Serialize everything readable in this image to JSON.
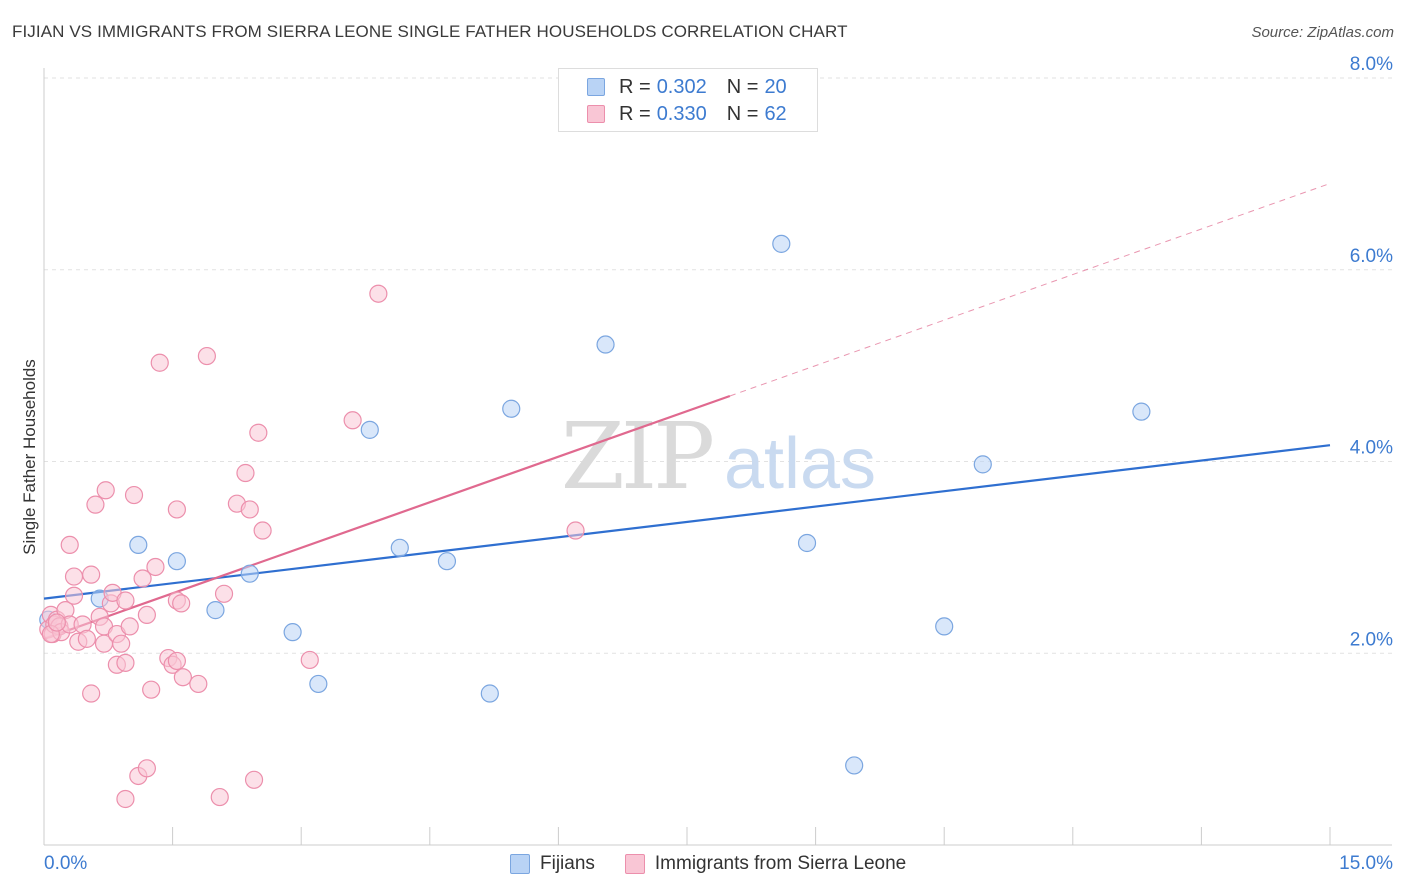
{
  "title": "FIJIAN VS IMMIGRANTS FROM SIERRA LEONE SINGLE FATHER HOUSEHOLDS CORRELATION CHART",
  "source": "Source: ZipAtlas.com",
  "watermark": {
    "zip": "ZIP",
    "atlas": "atlas"
  },
  "legend": {
    "rows": [
      {
        "r_label": "R =",
        "r_value": "0.302",
        "n_label": "N =",
        "n_value": "20",
        "color": "#b9d3f5",
        "border": "#7ba6e0"
      },
      {
        "r_label": "R =",
        "r_value": "0.330",
        "n_label": "N =",
        "n_value": "62",
        "color": "#f9c6d5",
        "border": "#ec8fac"
      }
    ]
  },
  "bottom_legend": [
    {
      "label": "Fijians",
      "color": "#b9d3f5",
      "border": "#7ba6e0"
    },
    {
      "label": "Immigrants from Sierra Leone",
      "color": "#f9c6d5",
      "border": "#ec8fac"
    }
  ],
  "chart_data": {
    "type": "scatter",
    "title": "FIJIAN VS IMMIGRANTS FROM SIERRA LEONE SINGLE FATHER HOUSEHOLDS CORRELATION CHART",
    "xlabel": "",
    "ylabel": "Single Father Households",
    "xlim": [
      0,
      15
    ],
    "ylim": [
      0,
      8.0
    ],
    "x_tick_labels": [
      "0.0%",
      "15.0%"
    ],
    "y_ticks": [
      2.0,
      4.0,
      6.0,
      8.0
    ],
    "y_tick_labels": [
      "2.0%",
      "4.0%",
      "6.0%",
      "8.0%"
    ],
    "grid": true,
    "legend_position": "top-center",
    "series": [
      {
        "name": "Fijians",
        "color": "#7ba6e0",
        "fill": "#b9d3f5",
        "line_color": "#2f6fd0",
        "trend": {
          "x0": 0.0,
          "y0": 2.57,
          "x1": 15.0,
          "y1": 4.17,
          "solid_to": 15.0
        },
        "points": [
          [
            0.05,
            2.35
          ],
          [
            0.65,
            2.57
          ],
          [
            1.1,
            3.13
          ],
          [
            1.55,
            2.96
          ],
          [
            2.0,
            2.45
          ],
          [
            2.4,
            2.83
          ],
          [
            2.9,
            2.22
          ],
          [
            3.2,
            1.68
          ],
          [
            3.8,
            4.33
          ],
          [
            4.15,
            3.1
          ],
          [
            4.7,
            2.96
          ],
          [
            5.2,
            1.58
          ],
          [
            5.45,
            4.55
          ],
          [
            6.55,
            5.22
          ],
          [
            8.6,
            6.27
          ],
          [
            8.9,
            3.15
          ],
          [
            9.45,
            0.83
          ],
          [
            10.5,
            2.28
          ],
          [
            10.95,
            3.97
          ],
          [
            12.8,
            4.52
          ]
        ]
      },
      {
        "name": "Immigrants from Sierra Leone",
        "color": "#ec8fac",
        "fill": "#f9c6d5",
        "line_color": "#e0698f",
        "trend": {
          "x0": 0.0,
          "y0": 2.15,
          "x1": 15.0,
          "y1": 6.9,
          "solid_to": 8.0
        },
        "points": [
          [
            0.05,
            2.25
          ],
          [
            0.08,
            2.4
          ],
          [
            0.1,
            2.2
          ],
          [
            0.12,
            2.3
          ],
          [
            0.15,
            2.35
          ],
          [
            0.18,
            2.28
          ],
          [
            0.2,
            2.22
          ],
          [
            0.25,
            2.45
          ],
          [
            0.3,
            2.3
          ],
          [
            0.35,
            2.6
          ],
          [
            0.3,
            3.13
          ],
          [
            0.35,
            2.8
          ],
          [
            0.4,
            2.12
          ],
          [
            0.45,
            2.3
          ],
          [
            0.5,
            2.15
          ],
          [
            0.55,
            2.82
          ],
          [
            0.55,
            1.58
          ],
          [
            0.6,
            3.55
          ],
          [
            0.65,
            2.38
          ],
          [
            0.7,
            2.1
          ],
          [
            0.7,
            2.28
          ],
          [
            0.72,
            3.7
          ],
          [
            0.78,
            2.52
          ],
          [
            0.8,
            2.63
          ],
          [
            0.85,
            2.2
          ],
          [
            0.85,
            1.88
          ],
          [
            0.9,
            2.1
          ],
          [
            0.95,
            2.55
          ],
          [
            0.95,
            1.9
          ],
          [
            0.95,
            0.48
          ],
          [
            1.0,
            2.28
          ],
          [
            1.05,
            3.65
          ],
          [
            1.1,
            0.72
          ],
          [
            1.15,
            2.78
          ],
          [
            1.2,
            2.4
          ],
          [
            1.2,
            0.8
          ],
          [
            1.25,
            1.62
          ],
          [
            1.3,
            2.9
          ],
          [
            1.35,
            5.03
          ],
          [
            1.45,
            1.95
          ],
          [
            1.5,
            1.88
          ],
          [
            1.55,
            2.55
          ],
          [
            1.55,
            3.5
          ],
          [
            1.55,
            1.92
          ],
          [
            1.6,
            2.52
          ],
          [
            1.62,
            1.75
          ],
          [
            1.8,
            1.68
          ],
          [
            1.9,
            5.1
          ],
          [
            2.05,
            0.5
          ],
          [
            2.1,
            2.62
          ],
          [
            2.25,
            3.56
          ],
          [
            2.35,
            3.88
          ],
          [
            2.4,
            3.5
          ],
          [
            2.45,
            0.68
          ],
          [
            2.5,
            4.3
          ],
          [
            2.55,
            3.28
          ],
          [
            3.1,
            1.93
          ],
          [
            3.6,
            4.43
          ],
          [
            3.9,
            5.75
          ],
          [
            6.2,
            3.28
          ],
          [
            0.08,
            2.2
          ],
          [
            0.15,
            2.32
          ]
        ]
      }
    ]
  }
}
